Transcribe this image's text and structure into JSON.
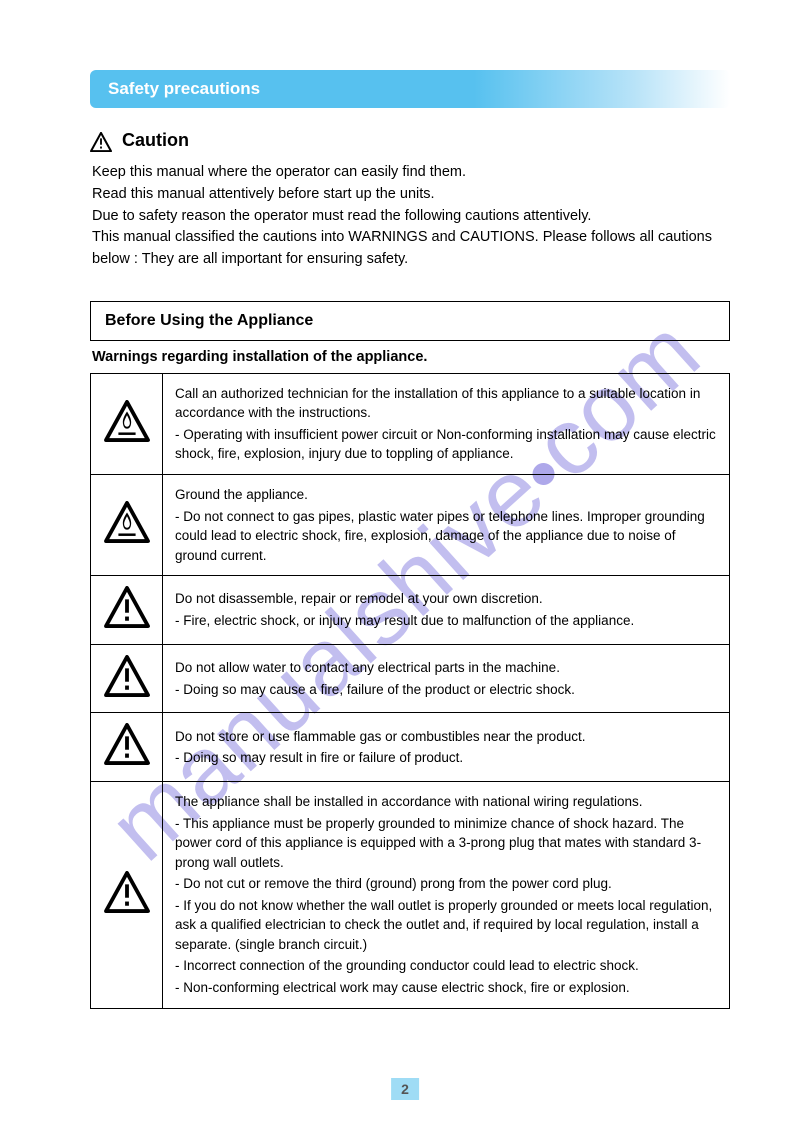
{
  "titleBar": "Safety precautions",
  "cautionLabel": "Caution",
  "intro": "Keep this manual where the operator can easily find them.\nRead this manual attentively before start up the units.\nDue to safety reason the operator must read the following cautions attentively.\nThis manual classified the cautions into WARNINGS and CAUTIONS. Please follows all cautions below : They are all important for ensuring safety.",
  "sectionHead": "Before Using the Appliance",
  "subHead": "Warnings regarding installation of the appliance.",
  "rows": [
    {
      "icon": "fire",
      "text": "Call an authorized technician for the installation of this appliance to a suitable location in accordance with the instructions.\nOperating with insufficient power circuit or Non-conforming installation may cause electric shock, fire, explosion, injury due to toppling of appliance."
    },
    {
      "icon": "fire",
      "text": "Ground the appliance.\nDo not connect to gas pipes, plastic water pipes or telephone lines. Improper grounding could lead to electric shock, fire, explosion, damage of the appliance due to noise of ground current."
    },
    {
      "icon": "alert",
      "text": "Do not disassemble, repair or remodel at your own discretion.\nFire, electric shock, or injury may result due to malfunction of the appliance."
    },
    {
      "icon": "alert",
      "text": "Do not allow water to contact any electrical parts in the machine.\nDoing so may cause a fire, failure of the product or electric shock."
    },
    {
      "icon": "alert",
      "text": "Do not store or use flammable gas or combustibles near the product.\nDoing so may result in fire or failure of product."
    },
    {
      "icon": "alert",
      "text": "The appliance shall be installed in accordance with national wiring regulations.\nThis appliance must be properly grounded to minimize chance of shock hazard. The power cord of this appliance is equipped with a 3-prong plug that mates with standard 3-prong wall outlets.\nDo not cut or remove the third (ground) prong from the power cord plug.\nIf you do not know whether the wall outlet is properly grounded or meets local regulation, ask a qualified electrician to check the outlet and, if required by local regulation, install a separate. (single branch circuit.)\nIncorrect connection of the grounding conductor could lead to electric shock.\nNon-conforming electrical work may cause electric shock, fire or explosion."
    }
  ],
  "pageNumber": "2",
  "watermark": "manualshive.com"
}
